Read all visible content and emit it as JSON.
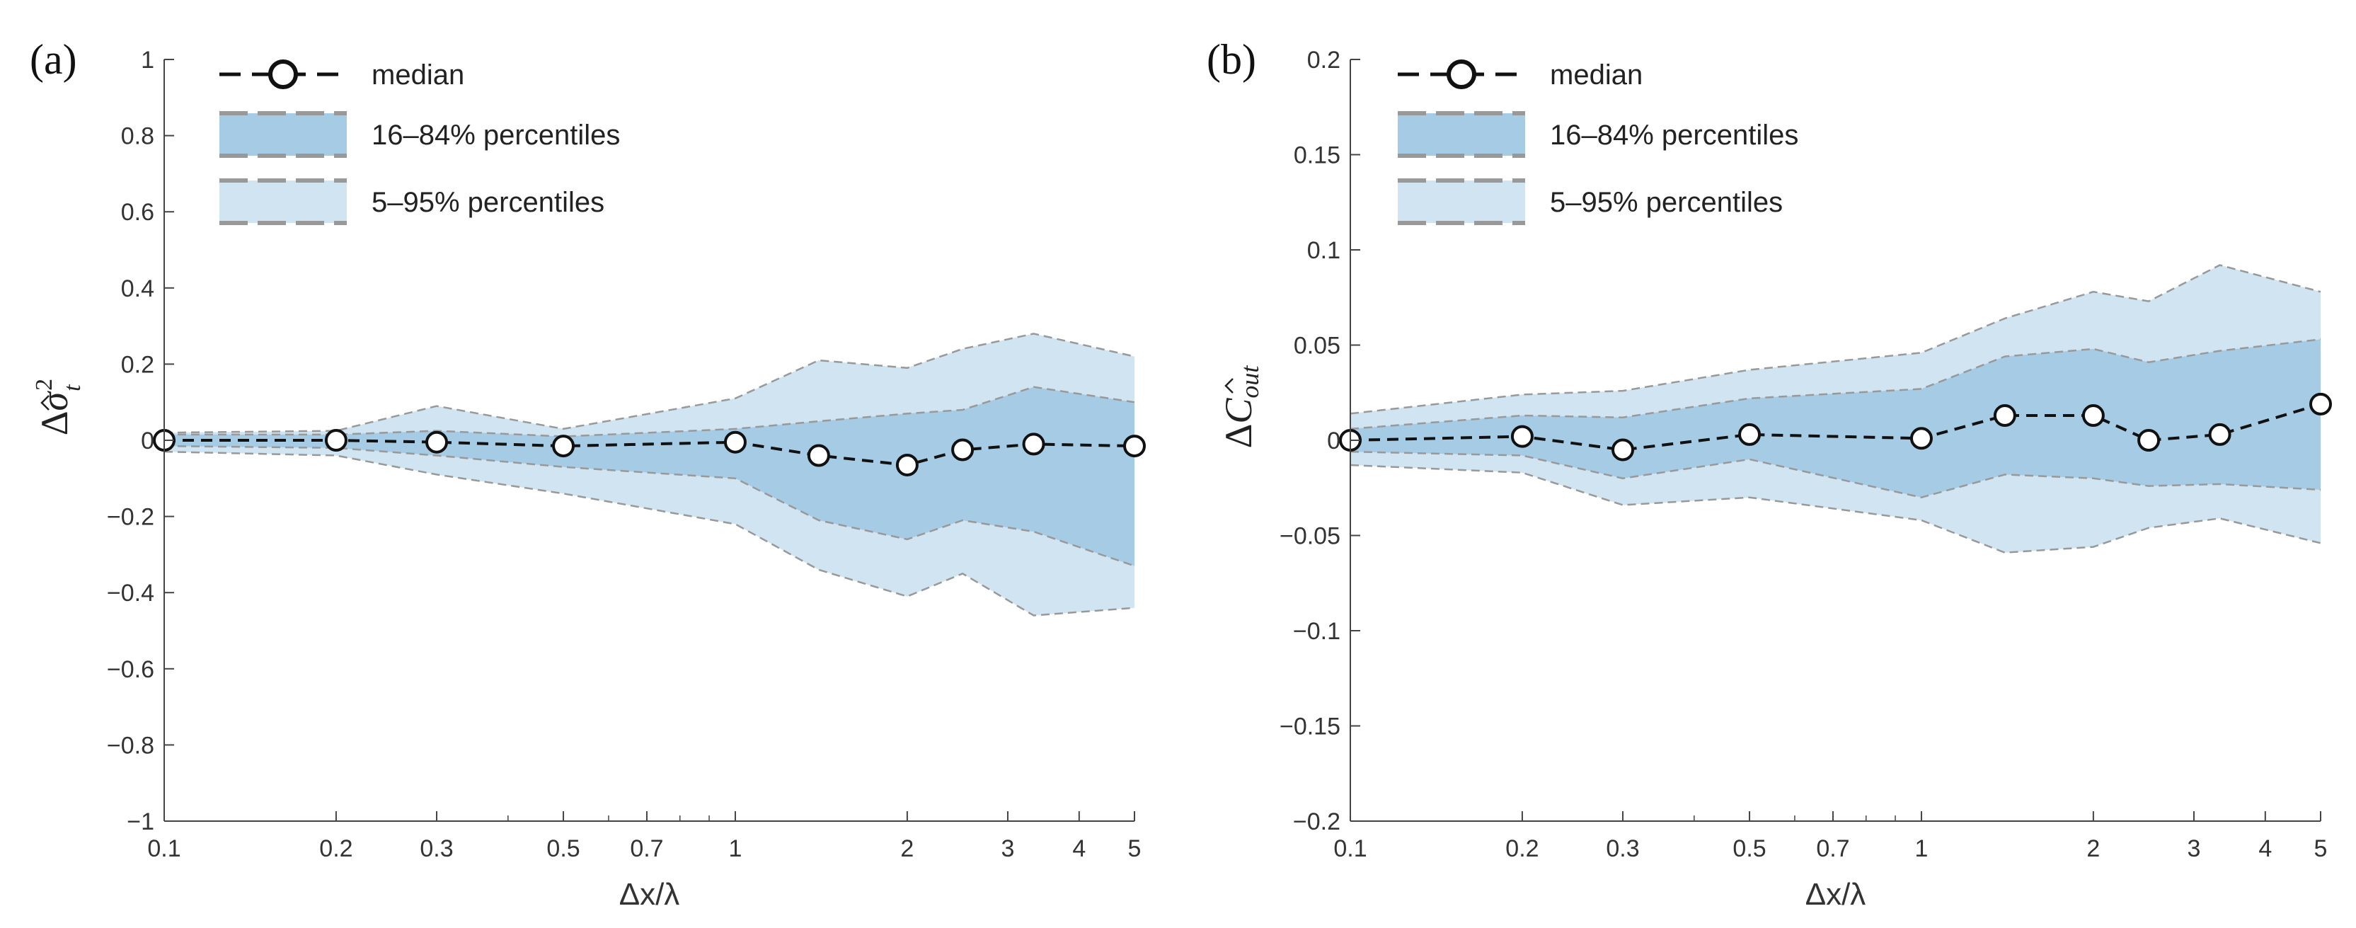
{
  "chart_data": [
    {
      "type": "area",
      "panel_label": "(a)",
      "xlabel": "Δx/λ",
      "ylabel": {
        "prefix": "Δ",
        "symbol": "σ",
        "superscript": "2",
        "subscript": "t"
      },
      "xscale": "log",
      "xlim": [
        0.1,
        5
      ],
      "ylim": [
        -1,
        1
      ],
      "xticks": [
        0.1,
        0.2,
        0.3,
        0.5,
        0.7,
        1,
        2,
        3,
        4,
        5
      ],
      "xtick_labels": [
        "0.1",
        "0.2",
        "0.3",
        "0.5",
        "0.7",
        "1",
        "2",
        "3",
        "4",
        "5"
      ],
      "yticks": [
        -1,
        -0.8,
        -0.6,
        -0.4,
        -0.2,
        0,
        0.2,
        0.4,
        0.6,
        0.8,
        1
      ],
      "ytick_labels": [
        "−1",
        "−0.8",
        "−0.6",
        "−0.4",
        "−0.2",
        "0",
        "0.2",
        "0.4",
        "0.6",
        "0.8",
        "1"
      ],
      "grid": false,
      "legend_placement": "top-left",
      "x": [
        0.1,
        0.2,
        0.3,
        0.5,
        1,
        1.4,
        2,
        2.5,
        3.33,
        5
      ],
      "series": [
        {
          "name": "median",
          "style": "dashed-line-circle-markers",
          "values": [
            0,
            0,
            -0.005,
            -0.015,
            -0.005,
            -0.04,
            -0.065,
            -0.025,
            -0.01,
            -0.015
          ]
        },
        {
          "name": "16–84% percentiles",
          "style": "band",
          "lower": [
            -0.015,
            -0.02,
            -0.04,
            -0.07,
            -0.1,
            -0.21,
            -0.26,
            -0.21,
            -0.24,
            -0.33
          ],
          "upper": [
            0.015,
            0.015,
            0.025,
            0.01,
            0.03,
            0.05,
            0.07,
            0.08,
            0.14,
            0.1
          ]
        },
        {
          "name": "5–95% percentiles",
          "style": "band",
          "lower": [
            -0.03,
            -0.04,
            -0.09,
            -0.14,
            -0.22,
            -0.34,
            -0.41,
            -0.35,
            -0.46,
            -0.44
          ],
          "upper": [
            0.02,
            0.025,
            0.09,
            0.03,
            0.11,
            0.21,
            0.19,
            0.24,
            0.28,
            0.22
          ]
        }
      ]
    },
    {
      "type": "area",
      "panel_label": "(b)",
      "xlabel": "Δx/λ",
      "ylabel": {
        "prefix": "Δ",
        "symbol": "C",
        "subscript": "out"
      },
      "xscale": "log",
      "xlim": [
        0.1,
        5
      ],
      "ylim": [
        -0.2,
        0.2
      ],
      "xticks": [
        0.1,
        0.2,
        0.3,
        0.5,
        0.7,
        1,
        2,
        3,
        4,
        5
      ],
      "xtick_labels": [
        "0.1",
        "0.2",
        "0.3",
        "0.5",
        "0.7",
        "1",
        "2",
        "3",
        "4",
        "5"
      ],
      "yticks": [
        -0.2,
        -0.15,
        -0.1,
        -0.05,
        0,
        0.05,
        0.1,
        0.15,
        0.2
      ],
      "ytick_labels": [
        "−0.2",
        "−0.15",
        "−0.1",
        "−0.05",
        "0",
        "0.05",
        "0.1",
        "0.15",
        "0.2"
      ],
      "grid": false,
      "legend_placement": "top-left",
      "x": [
        0.1,
        0.2,
        0.3,
        0.5,
        1,
        1.4,
        2,
        2.5,
        3.33,
        5
      ],
      "series": [
        {
          "name": "median",
          "style": "dashed-line-circle-markers",
          "values": [
            0,
            0.002,
            -0.005,
            0.003,
            0.001,
            0.013,
            0.013,
            0,
            0.003,
            0.019
          ]
        },
        {
          "name": "16–84% percentiles",
          "style": "band",
          "lower": [
            -0.006,
            -0.008,
            -0.02,
            -0.01,
            -0.03,
            -0.018,
            -0.02,
            -0.024,
            -0.023,
            -0.026
          ],
          "upper": [
            0.006,
            0.013,
            0.012,
            0.022,
            0.027,
            0.044,
            0.048,
            0.041,
            0.047,
            0.053
          ]
        },
        {
          "name": "5–95% percentiles",
          "style": "band",
          "lower": [
            -0.013,
            -0.017,
            -0.034,
            -0.03,
            -0.042,
            -0.059,
            -0.056,
            -0.046,
            -0.041,
            -0.054
          ],
          "upper": [
            0.014,
            0.024,
            0.026,
            0.037,
            0.046,
            0.064,
            0.078,
            0.073,
            0.092,
            0.078
          ]
        }
      ]
    }
  ],
  "colors": {
    "band_inner": "#a5cbe5",
    "band_outer": "#d0e4f2",
    "band_edge": "#999999",
    "median_line": "#111111",
    "marker_fill": "#ffffff",
    "axis": "#444444"
  }
}
